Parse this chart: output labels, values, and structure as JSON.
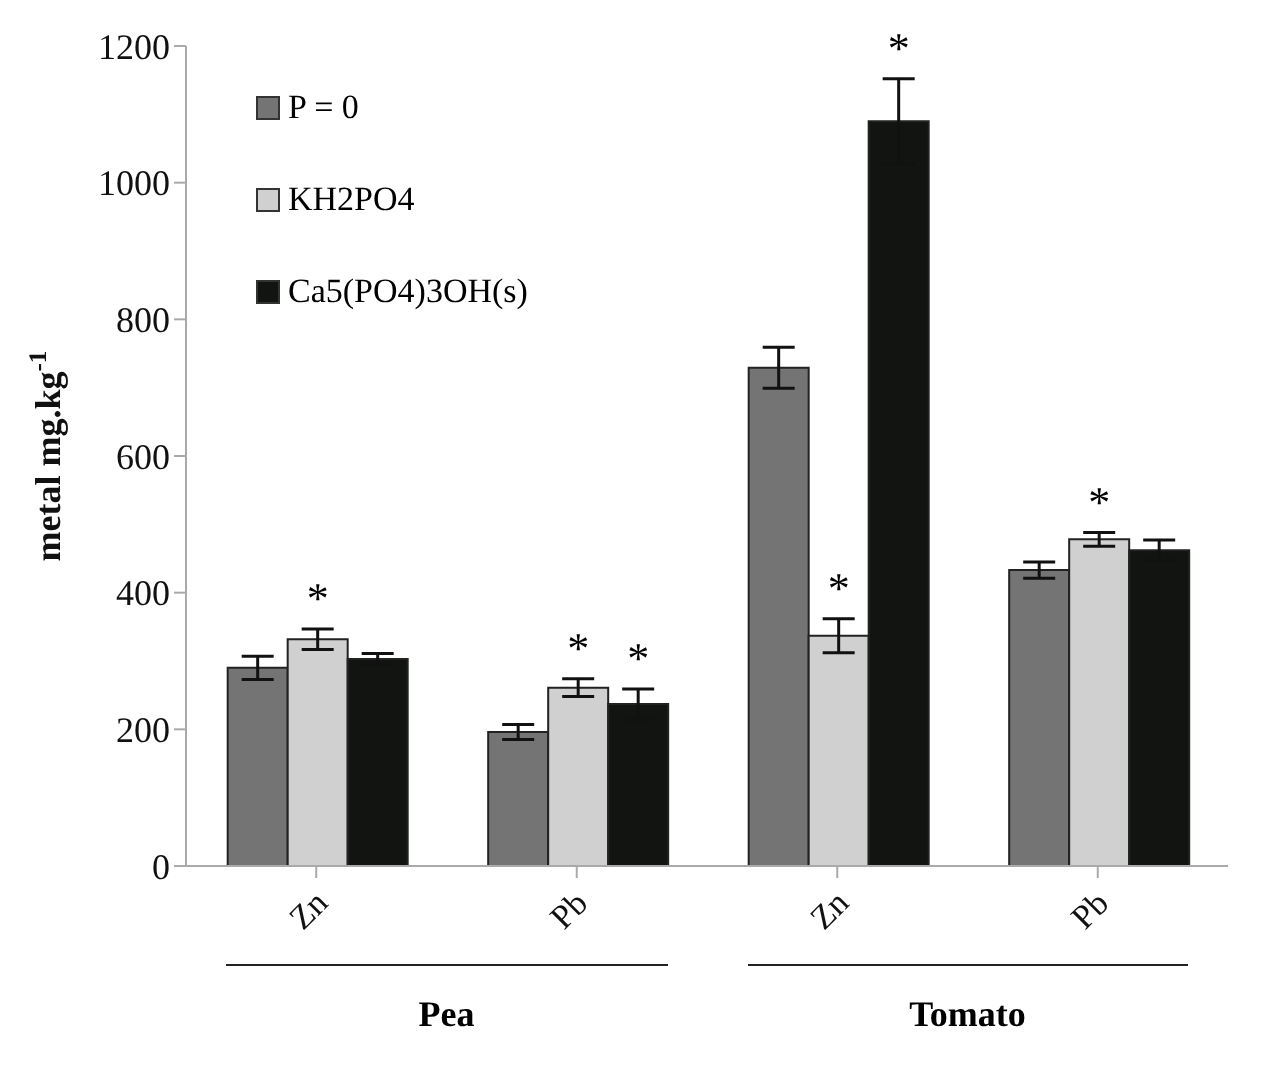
{
  "chart_data": {
    "type": "bar",
    "ylabel": "metal mg.kg$^{-1}$",
    "categories": [
      "Zn",
      "Pb",
      "Zn",
      "Pb"
    ],
    "series": [
      {
        "name": "P = 0",
        "color": "#747474",
        "values": [
          290,
          196,
          729,
          433
        ],
        "errors": [
          17,
          11,
          30,
          12
        ],
        "value_labels": [
          null,
          null,
          null,
          null
        ]
      },
      {
        "name": "KH2PO4",
        "color": "#cfd0cf",
        "values": [
          332,
          261,
          337,
          478
        ],
        "errors": [
          15,
          13,
          25,
          10
        ],
        "value_labels": [
          "*",
          "*",
          "*",
          "*"
        ]
      },
      {
        "name": "Ca5(PO4)3OH(s)",
        "color": "#121411",
        "values": [
          303,
          237,
          1090,
          462
        ],
        "errors": [
          8,
          22,
          62,
          15
        ],
        "value_labels": [
          null,
          "*",
          "*",
          null
        ]
      }
    ],
    "ylim": [
      0,
      1200
    ],
    "yticks": [
      0,
      200,
      400,
      600,
      800,
      1000,
      1200
    ],
    "grid": false,
    "legend": "top left",
    "annotations": [
      "Pea",
      "Tomato"
    ]
  }
}
